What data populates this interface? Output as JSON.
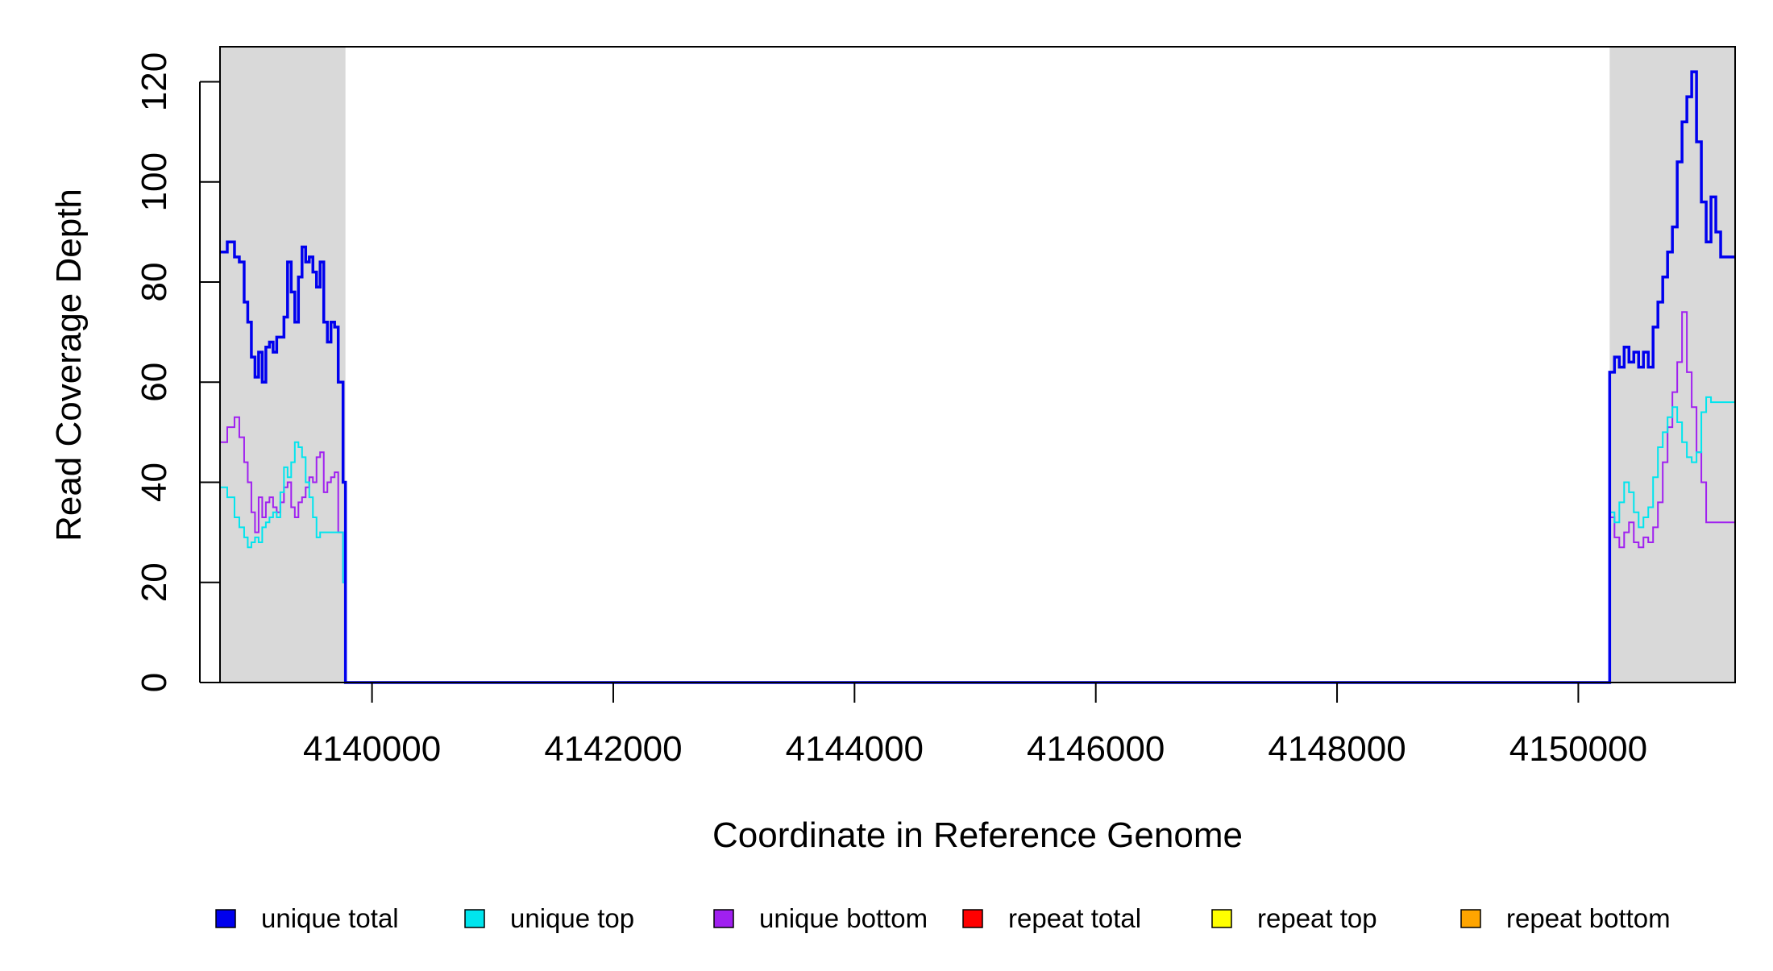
{
  "chart_data": {
    "type": "line",
    "title": "",
    "xlabel": "Coordinate in Reference Genome",
    "ylabel": "Read Coverage Depth",
    "xlim": [
      4138740,
      4151300
    ],
    "ylim": [
      0,
      127
    ],
    "x_ticks": [
      4140000,
      4142000,
      4144000,
      4146000,
      4148000,
      4150000
    ],
    "x_tick_labels": [
      "4140000",
      "4142000",
      "4144000",
      "4146000",
      "4148000",
      "4150000"
    ],
    "y_ticks": [
      0,
      20,
      40,
      60,
      80,
      100,
      120
    ],
    "y_tick_labels": [
      "0",
      "20",
      "40",
      "60",
      "80",
      "100",
      "120"
    ],
    "grid": false,
    "legend_position": "bottom",
    "shaded_regions": [
      {
        "x": [
          4138740,
          4139780
        ],
        "color": "#d9d9d9"
      },
      {
        "x": [
          4150260,
          4151300
        ],
        "color": "#d9d9d9"
      }
    ],
    "series": [
      {
        "name": "unique total",
        "color": "#0000ee",
        "x": [
          4138740,
          4138800,
          4138860,
          4138900,
          4138940,
          4138970,
          4139000,
          4139030,
          4139060,
          4139090,
          4139120,
          4139150,
          4139180,
          4139210,
          4139240,
          4139270,
          4139300,
          4139330,
          4139360,
          4139390,
          4139420,
          4139450,
          4139480,
          4139510,
          4139540,
          4139570,
          4139600,
          4139630,
          4139660,
          4139690,
          4139720,
          4139760,
          4139780,
          4139790,
          4150250,
          4150260,
          4150300,
          4150340,
          4150380,
          4150420,
          4150460,
          4150500,
          4150540,
          4150580,
          4150620,
          4150660,
          4150700,
          4150740,
          4150780,
          4150820,
          4150860,
          4150900,
          4150940,
          4150980,
          4151020,
          4151060,
          4151100,
          4151140,
          4151180,
          4151220,
          4151260,
          4151300
        ],
        "values": [
          86,
          88,
          85,
          84,
          76,
          72,
          65,
          61,
          66,
          60,
          67,
          68,
          66,
          69,
          69,
          73,
          84,
          78,
          72,
          81,
          87,
          84,
          85,
          82,
          79,
          84,
          72,
          68,
          72,
          71,
          60,
          40,
          0,
          0,
          0,
          62,
          65,
          63,
          67,
          64,
          66,
          63,
          66,
          63,
          71,
          76,
          81,
          86,
          91,
          104,
          112,
          117,
          122,
          108,
          96,
          88,
          97,
          90,
          85,
          85,
          85,
          85
        ]
      },
      {
        "name": "unique top",
        "color": "#00e5ee",
        "x": [
          4138740,
          4138800,
          4138860,
          4138900,
          4138940,
          4138970,
          4139000,
          4139030,
          4139060,
          4139090,
          4139120,
          4139150,
          4139180,
          4139210,
          4139240,
          4139270,
          4139300,
          4139330,
          4139360,
          4139390,
          4139420,
          4139450,
          4139480,
          4139510,
          4139540,
          4139570,
          4139600,
          4139630,
          4139660,
          4139690,
          4139720,
          4139760,
          4139780,
          4139790,
          4150250,
          4150260,
          4150300,
          4150340,
          4150380,
          4150420,
          4150460,
          4150500,
          4150540,
          4150580,
          4150620,
          4150660,
          4150700,
          4150740,
          4150780,
          4150820,
          4150860,
          4150900,
          4150940,
          4150980,
          4151020,
          4151060,
          4151100,
          4151140,
          4151180,
          4151220,
          4151260,
          4151300
        ],
        "values": [
          39,
          37,
          33,
          31,
          29,
          27,
          28,
          29,
          28,
          31,
          32,
          33,
          34,
          33,
          38,
          43,
          41,
          44,
          48,
          47,
          45,
          40,
          37,
          33,
          29,
          30,
          30,
          30,
          30,
          30,
          30,
          20,
          0,
          0,
          0,
          34,
          32,
          36,
          40,
          38,
          34,
          31,
          33,
          35,
          41,
          47,
          50,
          53,
          55,
          52,
          48,
          45,
          44,
          46,
          54,
          57,
          56,
          56,
          56,
          56,
          56,
          56
        ]
      },
      {
        "name": "unique bottom",
        "color": "#a020f0",
        "x": [
          4138740,
          4138800,
          4138860,
          4138900,
          4138940,
          4138970,
          4139000,
          4139030,
          4139060,
          4139090,
          4139120,
          4139150,
          4139180,
          4139210,
          4139240,
          4139270,
          4139300,
          4139330,
          4139360,
          4139390,
          4139420,
          4139450,
          4139480,
          4139510,
          4139540,
          4139570,
          4139600,
          4139630,
          4139660,
          4139690,
          4139720,
          4139760,
          4139780,
          4139790,
          4150250,
          4150260,
          4150300,
          4150340,
          4150380,
          4150420,
          4150460,
          4150500,
          4150540,
          4150580,
          4150620,
          4150660,
          4150700,
          4150740,
          4150780,
          4150820,
          4150860,
          4150900,
          4150940,
          4150980,
          4151020,
          4151060,
          4151100,
          4151140,
          4151180,
          4151220,
          4151260,
          4151300
        ],
        "values": [
          48,
          51,
          53,
          49,
          44,
          40,
          34,
          30,
          37,
          33,
          36,
          37,
          35,
          34,
          36,
          39,
          40,
          35,
          33,
          36,
          37,
          39,
          41,
          40,
          45,
          46,
          38,
          40,
          41,
          42,
          30,
          20,
          0,
          0,
          0,
          33,
          29,
          27,
          30,
          32,
          28,
          27,
          29,
          28,
          31,
          36,
          44,
          51,
          58,
          64,
          74,
          62,
          55,
          46,
          40,
          32,
          32,
          32,
          32,
          32,
          32,
          32
        ]
      },
      {
        "name": "repeat total",
        "color": "#ff0000",
        "x": [
          4138740,
          4151300
        ],
        "values": [
          0,
          0
        ]
      },
      {
        "name": "repeat top",
        "color": "#ffff00",
        "x": [
          4138740,
          4151300
        ],
        "values": [
          0,
          0
        ]
      },
      {
        "name": "repeat bottom",
        "color": "#ffa500",
        "x": [
          4138740,
          4151300
        ],
        "values": [
          0,
          0
        ]
      }
    ]
  }
}
